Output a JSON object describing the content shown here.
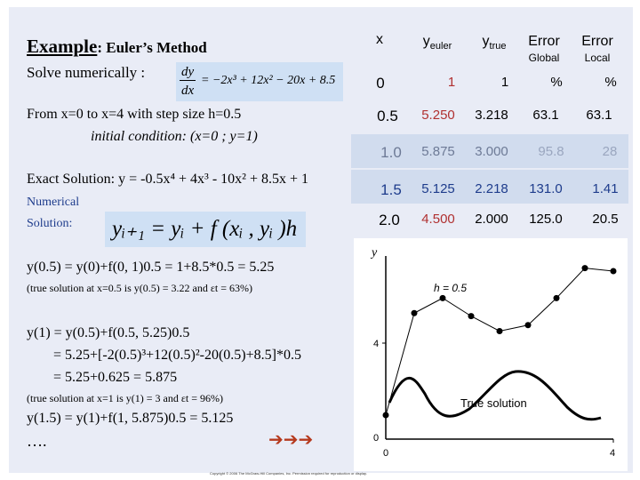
{
  "slide": {
    "title_main": "Example",
    "title_rest": ":  Euler’s Method",
    "solve_label": "Solve numerically :",
    "ode": {
      "lhs_num": "dy",
      "lhs_den": "dx",
      "rhs": "= −2x³ + 12x² − 20x + 8.5"
    },
    "range_text": "From x=0 to x=4 with step size h=0.5",
    "initial_condition": "initial condition:   (x=0 ; y=1)",
    "exact_solution": "Exact Solution: y = -0.5x⁴ + 4x³ - 10x² + 8.5x + 1",
    "numerical_label_1": "Numerical",
    "numerical_label_2": "Solution:",
    "euler_formula": "yᵢ₊₁ = yᵢ + f (xᵢ , yᵢ )h",
    "step1": "y(0.5) = y(0)+f(0, 1)0.5 = 1+8.5*0.5 = 5.25",
    "step1_note": "(true solution at x=0.5 is y(0.5) = 3.22  and  εt = 63%)",
    "step2_line1": "y(1) = y(0.5)+f(0.5, 5.25)0.5",
    "step2_line2": "= 5.25+[-2(0.5)³+12(0.5)²-20(0.5)+8.5]*0.5",
    "step2_line3": "= 5.25+0.625 = 5.875",
    "step2_note": "(true solution at x=1 is y(1) = 3 and  εt = 96%)",
    "step3": "y(1.5) = y(1)+f(1, 5.875)0.5 = 5.125",
    "ellipsis": "….",
    "arrows": "➔➔➔",
    "copyright": "Copyright © 2006 The McGraw-Hill Companies, Inc. Permission required for reproduction or display."
  },
  "table": {
    "headers": [
      {
        "main": "x",
        "sub": ""
      },
      {
        "main": "y",
        "sub": "euler"
      },
      {
        "main": "y",
        "sub": "true"
      },
      {
        "main": "Error",
        "sub": "Global"
      },
      {
        "main": "Error",
        "sub": "Local"
      }
    ],
    "rows": [
      {
        "x": "0",
        "euler": "1",
        "true": "1",
        "global": "%",
        "local": "%"
      },
      {
        "x": "0.5",
        "euler": "5.250",
        "true": "3.218",
        "global": "63.1",
        "local": "63.1"
      },
      {
        "x": "1.0",
        "euler": "5.875",
        "true": "3.000",
        "global": "95.8",
        "local": "28"
      },
      {
        "x": "1.5",
        "euler": "5.125",
        "true": "2.218",
        "global": "131.0",
        "local": "1.41"
      },
      {
        "x": "2.0",
        "euler": "4.500",
        "true": "2.000",
        "global": "125.0",
        "local": "20.5"
      }
    ],
    "highlight_color": "#d1dcee"
  },
  "figure": {
    "y_label": "y",
    "step_label": "h = 0.5",
    "curve_label": "True solution",
    "y_ticks": [
      "0",
      "4"
    ],
    "x_ticks": [
      "0",
      "4"
    ],
    "euler_points": [
      [
        0,
        1
      ],
      [
        0.5,
        5.25
      ],
      [
        1.0,
        5.875
      ],
      [
        1.5,
        5.125
      ],
      [
        2.0,
        4.5
      ],
      [
        2.5,
        4.75
      ],
      [
        3.0,
        5.875
      ],
      [
        3.5,
        7.125
      ],
      [
        4.0,
        7.0
      ]
    ]
  }
}
